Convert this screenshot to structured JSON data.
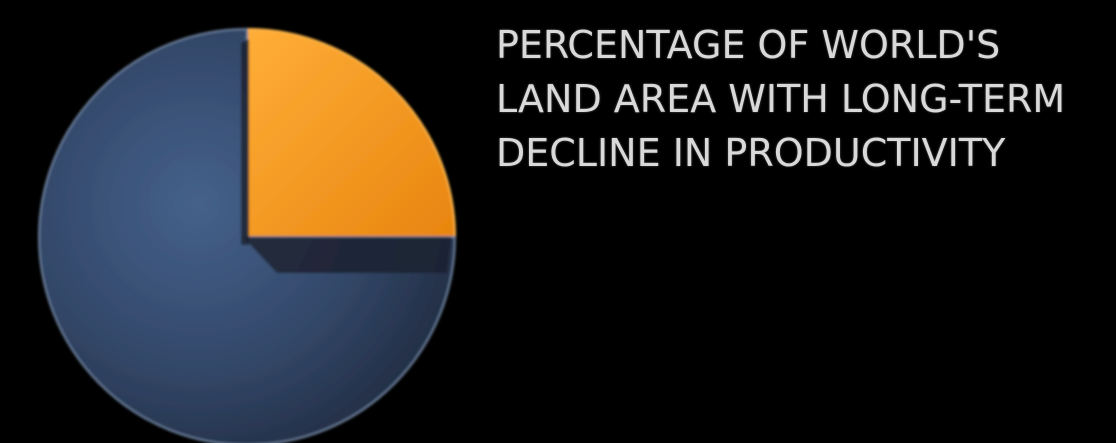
{
  "chart_data": {
    "type": "pie",
    "title_lines": [
      "PERCENTAGE OF        WORLD'S",
      "LAND AREA WITH LONG-TERM",
      "DECLINE IN PRODUCTIVITY"
    ],
    "slices": [
      {
        "value": 25,
        "color": "#f0951c",
        "edge": "#ffb84a",
        "label": ""
      },
      {
        "value": 75,
        "color": "#3a4f6e",
        "edge": "#6b7f9c",
        "label": ""
      }
    ],
    "start_angle_deg": 0,
    "legend": "none",
    "grid": false
  }
}
